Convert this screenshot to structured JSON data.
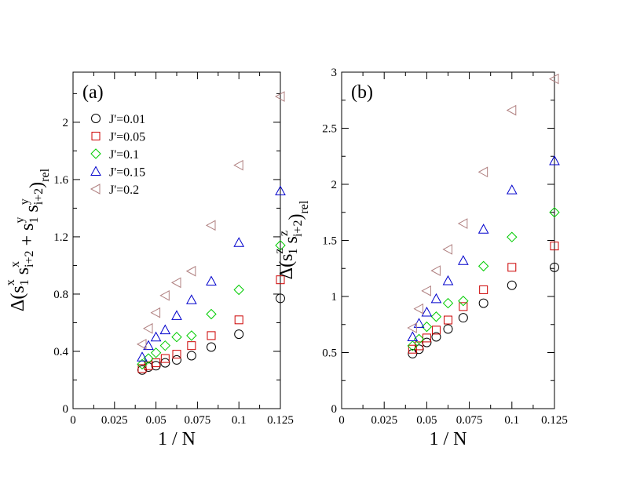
{
  "chart_data": [
    {
      "type": "scatter",
      "panel_label": "(a)",
      "xlabel": "1 / N",
      "ylabel": {
        "parts": [
          "Δ(s",
          "x",
          "1",
          " s",
          "x",
          "i+2",
          " + s",
          "y",
          "1",
          " s",
          "y",
          "i+2",
          ")",
          "rel"
        ],
        "text": "Δ(s_1^x s_{i+2}^x + s_1^y s_{i+2}^y)_rel"
      },
      "xlim": [
        0,
        0.125
      ],
      "ylim": [
        0,
        2.35
      ],
      "xticks": [
        0,
        0.025,
        0.05,
        0.075,
        0.1,
        0.125
      ],
      "xtick_labels": [
        "0",
        "0.025",
        "0.05",
        "0.075",
        "0.1",
        "0.125"
      ],
      "yticks": [
        0,
        0.4,
        0.8,
        1.2,
        1.6,
        2.0
      ],
      "ytick_labels": [
        "0",
        "0.4",
        "0.8",
        "1.2",
        "1.6",
        "2"
      ],
      "legend_position": "top-left",
      "series": [
        {
          "name": "J'=0.01",
          "marker": "circle",
          "color": "#000000",
          "x": [
            0.041667,
            0.045455,
            0.05,
            0.055556,
            0.0625,
            0.071429,
            0.083333,
            0.1,
            0.125
          ],
          "y": [
            0.27,
            0.29,
            0.3,
            0.32,
            0.34,
            0.37,
            0.43,
            0.52,
            0.77
          ]
        },
        {
          "name": "J'=0.05",
          "marker": "square",
          "color": "#cc0000",
          "x": [
            0.041667,
            0.045455,
            0.05,
            0.055556,
            0.0625,
            0.071429,
            0.083333,
            0.1,
            0.125
          ],
          "y": [
            0.28,
            0.3,
            0.32,
            0.35,
            0.38,
            0.44,
            0.51,
            0.62,
            0.9
          ]
        },
        {
          "name": "J'=0.1",
          "marker": "diamond",
          "color": "#00cc00",
          "x": [
            0.041667,
            0.045455,
            0.05,
            0.055556,
            0.0625,
            0.071429,
            0.083333,
            0.1,
            0.125
          ],
          "y": [
            0.31,
            0.35,
            0.39,
            0.44,
            0.5,
            0.51,
            0.66,
            0.83,
            1.14
          ]
        },
        {
          "name": "J'=0.15",
          "marker": "triangle-up",
          "color": "#0000cc",
          "x": [
            0.041667,
            0.045455,
            0.05,
            0.055556,
            0.0625,
            0.071429,
            0.083333,
            0.1,
            0.125
          ],
          "y": [
            0.36,
            0.44,
            0.5,
            0.55,
            0.65,
            0.76,
            0.89,
            1.16,
            1.52
          ]
        },
        {
          "name": "J'=0.2",
          "marker": "triangle-left",
          "color": "#b08080",
          "x": [
            0.041667,
            0.045455,
            0.05,
            0.055556,
            0.0625,
            0.071429,
            0.083333,
            0.1,
            0.125
          ],
          "y": [
            0.45,
            0.56,
            0.67,
            0.79,
            0.88,
            0.96,
            1.28,
            1.7,
            2.18
          ]
        }
      ]
    },
    {
      "type": "scatter",
      "panel_label": "(b)",
      "xlabel": "1 / N",
      "ylabel": {
        "parts": [
          "Δ(s",
          "z",
          "1",
          " s",
          "z",
          "i+2",
          ")",
          "rel"
        ],
        "text": "Δ(s_1^z s_{i+2}^z)_rel"
      },
      "xlim": [
        0,
        0.125
      ],
      "ylim": [
        0,
        3
      ],
      "xticks": [
        0,
        0.025,
        0.05,
        0.075,
        0.1,
        0.125
      ],
      "xtick_labels": [
        "0",
        "0.025",
        "0.05",
        "0.075",
        "0.1",
        "0.125"
      ],
      "yticks": [
        0,
        0.5,
        1,
        1.5,
        2,
        2.5,
        3
      ],
      "ytick_labels": [
        "0",
        "0.5",
        "1",
        "1.5",
        "2",
        "2.5",
        "3"
      ],
      "legend_position": "none",
      "series": [
        {
          "name": "J'=0.01",
          "marker": "circle",
          "color": "#000000",
          "x": [
            0.041667,
            0.045455,
            0.05,
            0.055556,
            0.0625,
            0.071429,
            0.083333,
            0.1,
            0.125
          ],
          "y": [
            0.49,
            0.53,
            0.59,
            0.64,
            0.71,
            0.81,
            0.94,
            1.1,
            1.26
          ]
        },
        {
          "name": "J'=0.05",
          "marker": "square",
          "color": "#cc0000",
          "x": [
            0.041667,
            0.045455,
            0.05,
            0.055556,
            0.0625,
            0.071429,
            0.083333,
            0.1,
            0.125
          ],
          "y": [
            0.53,
            0.56,
            0.63,
            0.7,
            0.79,
            0.91,
            1.06,
            1.26,
            1.45
          ]
        },
        {
          "name": "J'=0.1",
          "marker": "diamond",
          "color": "#00cc00",
          "x": [
            0.041667,
            0.045455,
            0.05,
            0.055556,
            0.0625,
            0.071429,
            0.083333,
            0.1,
            0.125
          ],
          "y": [
            0.56,
            0.62,
            0.73,
            0.82,
            0.94,
            0.96,
            1.27,
            1.53,
            1.75
          ]
        },
        {
          "name": "J'=0.15",
          "marker": "triangle-up",
          "color": "#0000cc",
          "x": [
            0.041667,
            0.045455,
            0.05,
            0.055556,
            0.0625,
            0.071429,
            0.083333,
            0.1,
            0.125
          ],
          "y": [
            0.64,
            0.76,
            0.86,
            0.98,
            1.14,
            1.32,
            1.6,
            1.95,
            2.21
          ]
        },
        {
          "name": "J'=0.2",
          "marker": "triangle-left",
          "color": "#b08080",
          "x": [
            0.041667,
            0.045455,
            0.05,
            0.055556,
            0.0625,
            0.071429,
            0.083333,
            0.1,
            0.125
          ],
          "y": [
            0.72,
            0.89,
            1.05,
            1.23,
            1.42,
            1.65,
            2.11,
            2.66,
            2.94
          ]
        }
      ]
    }
  ]
}
